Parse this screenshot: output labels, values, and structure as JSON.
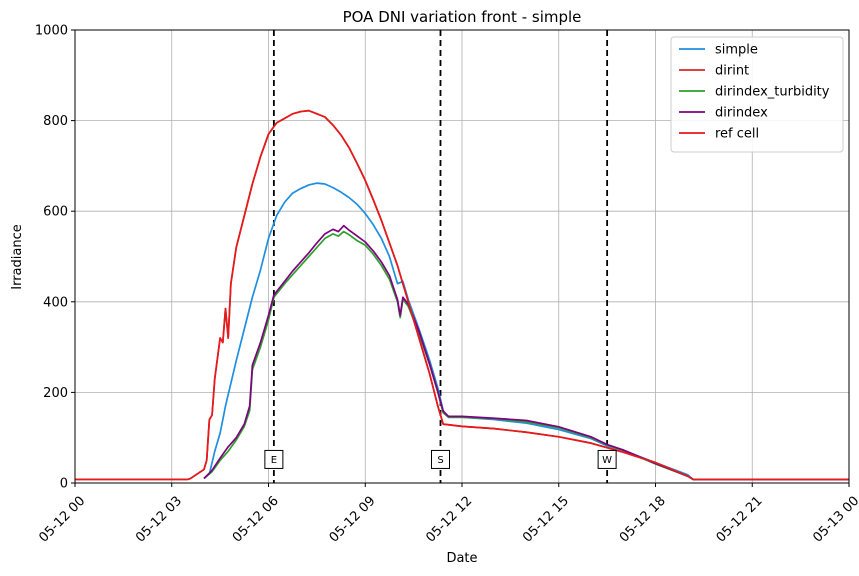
{
  "chart_data": {
    "type": "line",
    "title": "POA DNI variation front - simple",
    "xlabel": "Date",
    "ylabel": "Irradiance",
    "xlim": [
      "05-12 00",
      "05-13 00"
    ],
    "ylim": [
      0,
      1000
    ],
    "x_ticks": [
      "05-12 00",
      "05-12 03",
      "05-12 06",
      "05-12 09",
      "05-12 12",
      "05-12 15",
      "05-12 18",
      "05-12 21",
      "05-13 00"
    ],
    "y_ticks": [
      0,
      200,
      400,
      600,
      800,
      1000
    ],
    "grid": true,
    "legend_position": "top-right",
    "vertical_markers": [
      {
        "label": "E",
        "x": "05-12 06:10"
      },
      {
        "label": "S",
        "x": "05-12 11:20"
      },
      {
        "label": "W",
        "x": "05-12 16:30"
      }
    ],
    "series": [
      {
        "name": "simple",
        "color": "#1f8ee0",
        "points": [
          [
            "05-12 04:00",
            10
          ],
          [
            "05-12 04:10",
            20
          ],
          [
            "05-12 04:20",
            70
          ],
          [
            "05-12 04:30",
            110
          ],
          [
            "05-12 04:40",
            170
          ],
          [
            "05-12 04:50",
            220
          ],
          [
            "05-12 05:00",
            270
          ],
          [
            "05-12 05:15",
            340
          ],
          [
            "05-12 05:30",
            410
          ],
          [
            "05-12 05:45",
            470
          ],
          [
            "05-12 06:00",
            540
          ],
          [
            "05-12 06:15",
            590
          ],
          [
            "05-12 06:30",
            620
          ],
          [
            "05-12 06:45",
            640
          ],
          [
            "05-12 07:00",
            650
          ],
          [
            "05-12 07:15",
            658
          ],
          [
            "05-12 07:30",
            662
          ],
          [
            "05-12 07:45",
            660
          ],
          [
            "05-12 08:00",
            652
          ],
          [
            "05-12 08:15",
            642
          ],
          [
            "05-12 08:30",
            630
          ],
          [
            "05-12 08:45",
            615
          ],
          [
            "05-12 09:00",
            595
          ],
          [
            "05-12 09:15",
            570
          ],
          [
            "05-12 09:30",
            540
          ],
          [
            "05-12 09:45",
            500
          ],
          [
            "05-12 10:00",
            440
          ],
          [
            "05-12 10:10",
            445
          ],
          [
            "05-12 10:20",
            405
          ],
          [
            "05-12 10:40",
            340
          ],
          [
            "05-12 11:00",
            270
          ],
          [
            "05-12 11:15",
            210
          ],
          [
            "05-12 11:25",
            160
          ],
          [
            "05-12 11:35",
            145
          ],
          [
            "05-12 12:00",
            145
          ],
          [
            "05-12 13:00",
            140
          ],
          [
            "05-12 14:00",
            132
          ],
          [
            "05-12 15:00",
            118
          ],
          [
            "05-12 16:00",
            98
          ],
          [
            "05-12 16:30",
            82
          ],
          [
            "05-12 17:00",
            72
          ],
          [
            "05-12 18:00",
            45
          ],
          [
            "05-12 19:00",
            18
          ],
          [
            "05-12 19:10",
            8
          ],
          [
            "05-12 21:00",
            8
          ],
          [
            "05-13 00:00",
            8
          ]
        ]
      },
      {
        "name": "dirint",
        "color": "#d62728",
        "points": [
          [
            "05-12 00:00",
            8
          ],
          [
            "05-12 03:30",
            8
          ],
          [
            "05-12 03:35",
            10
          ],
          [
            "05-12 04:00",
            30
          ],
          [
            "05-12 04:05",
            50
          ],
          [
            "05-12 04:10",
            140
          ],
          [
            "05-12 04:15",
            150
          ],
          [
            "05-12 04:20",
            230
          ],
          [
            "05-12 04:30",
            320
          ],
          [
            "05-12 04:35",
            310
          ],
          [
            "05-12 04:40",
            385
          ],
          [
            "05-12 04:45",
            320
          ],
          [
            "05-12 04:50",
            440
          ],
          [
            "05-12 05:00",
            520
          ],
          [
            "05-12 05:15",
            590
          ],
          [
            "05-12 05:30",
            660
          ],
          [
            "05-12 05:45",
            720
          ],
          [
            "05-12 06:00",
            770
          ],
          [
            "05-12 06:15",
            795
          ],
          [
            "05-12 06:30",
            805
          ],
          [
            "05-12 06:45",
            815
          ],
          [
            "05-12 07:00",
            820
          ],
          [
            "05-12 07:15",
            822
          ],
          [
            "05-12 07:30",
            815
          ],
          [
            "05-12 07:45",
            808
          ],
          [
            "05-12 08:00",
            790
          ],
          [
            "05-12 08:15",
            768
          ],
          [
            "05-12 08:30",
            740
          ],
          [
            "05-12 08:45",
            705
          ],
          [
            "05-12 09:00",
            668
          ],
          [
            "05-12 09:15",
            625
          ],
          [
            "05-12 09:30",
            580
          ],
          [
            "05-12 09:45",
            530
          ],
          [
            "05-12 10:00",
            480
          ],
          [
            "05-12 10:15",
            420
          ],
          [
            "05-12 10:30",
            360
          ],
          [
            "05-12 10:45",
            300
          ],
          [
            "05-12 11:00",
            240
          ],
          [
            "05-12 11:15",
            170
          ],
          [
            "05-12 11:25",
            130
          ],
          [
            "05-12 12:00",
            125
          ],
          [
            "05-12 13:00",
            120
          ],
          [
            "05-12 14:00",
            112
          ],
          [
            "05-12 15:00",
            102
          ],
          [
            "05-12 16:00",
            88
          ],
          [
            "05-12 16:30",
            78
          ],
          [
            "05-12 17:00",
            68
          ],
          [
            "05-12 18:00",
            45
          ],
          [
            "05-12 19:00",
            15
          ],
          [
            "05-12 19:10",
            8
          ],
          [
            "05-12 21:00",
            8
          ],
          [
            "05-13 00:00",
            8
          ]
        ]
      },
      {
        "name": "dirindex_turbidity",
        "color": "#2ca02c",
        "points": [
          [
            "05-12 04:00",
            10
          ],
          [
            "05-12 04:15",
            25
          ],
          [
            "05-12 04:30",
            50
          ],
          [
            "05-12 04:45",
            70
          ],
          [
            "05-12 05:00",
            95
          ],
          [
            "05-12 05:15",
            125
          ],
          [
            "05-12 05:25",
            160
          ],
          [
            "05-12 05:30",
            250
          ],
          [
            "05-12 05:45",
            300
          ],
          [
            "05-12 06:00",
            360
          ],
          [
            "05-12 06:10",
            410
          ],
          [
            "05-12 06:30",
            440
          ],
          [
            "05-12 06:45",
            460
          ],
          [
            "05-12 07:00",
            480
          ],
          [
            "05-12 07:15",
            500
          ],
          [
            "05-12 07:30",
            520
          ],
          [
            "05-12 07:45",
            540
          ],
          [
            "05-12 08:00",
            550
          ],
          [
            "05-12 08:10",
            545
          ],
          [
            "05-12 08:20",
            555
          ],
          [
            "05-12 08:30",
            548
          ],
          [
            "05-12 08:45",
            535
          ],
          [
            "05-12 09:00",
            525
          ],
          [
            "05-12 09:15",
            505
          ],
          [
            "05-12 09:30",
            480
          ],
          [
            "05-12 09:45",
            450
          ],
          [
            "05-12 10:00",
            400
          ],
          [
            "05-12 10:05",
            365
          ],
          [
            "05-12 10:10",
            405
          ],
          [
            "05-12 10:20",
            390
          ],
          [
            "05-12 10:40",
            330
          ],
          [
            "05-12 11:00",
            260
          ],
          [
            "05-12 11:15",
            200
          ],
          [
            "05-12 11:25",
            155
          ],
          [
            "05-12 11:35",
            145
          ],
          [
            "05-12 12:00",
            145
          ],
          [
            "05-12 13:00",
            142
          ],
          [
            "05-12 14:00",
            135
          ],
          [
            "05-12 15:00",
            122
          ],
          [
            "05-12 16:00",
            100
          ],
          [
            "05-12 16:30",
            84
          ],
          [
            "05-12 17:00",
            72
          ],
          [
            "05-12 18:00",
            42
          ],
          [
            "05-12 19:00",
            15
          ],
          [
            "05-12 19:10",
            8
          ],
          [
            "05-12 21:00",
            8
          ],
          [
            "05-13 00:00",
            8
          ]
        ]
      },
      {
        "name": "dirindex",
        "color": "#800080",
        "points": [
          [
            "05-12 04:00",
            10
          ],
          [
            "05-12 04:15",
            28
          ],
          [
            "05-12 04:30",
            55
          ],
          [
            "05-12 04:45",
            80
          ],
          [
            "05-12 05:00",
            100
          ],
          [
            "05-12 05:15",
            130
          ],
          [
            "05-12 05:25",
            170
          ],
          [
            "05-12 05:30",
            260
          ],
          [
            "05-12 05:45",
            310
          ],
          [
            "05-12 06:00",
            370
          ],
          [
            "05-12 06:10",
            415
          ],
          [
            "05-12 06:30",
            445
          ],
          [
            "05-12 06:45",
            468
          ],
          [
            "05-12 07:00",
            488
          ],
          [
            "05-12 07:15",
            508
          ],
          [
            "05-12 07:30",
            530
          ],
          [
            "05-12 07:45",
            550
          ],
          [
            "05-12 08:00",
            560
          ],
          [
            "05-12 08:10",
            555
          ],
          [
            "05-12 08:20",
            568
          ],
          [
            "05-12 08:30",
            558
          ],
          [
            "05-12 08:45",
            545
          ],
          [
            "05-12 09:00",
            532
          ],
          [
            "05-12 09:15",
            512
          ],
          [
            "05-12 09:30",
            488
          ],
          [
            "05-12 09:45",
            458
          ],
          [
            "05-12 10:00",
            405
          ],
          [
            "05-12 10:05",
            370
          ],
          [
            "05-12 10:10",
            410
          ],
          [
            "05-12 10:20",
            395
          ],
          [
            "05-12 10:40",
            335
          ],
          [
            "05-12 11:00",
            262
          ],
          [
            "05-12 11:15",
            202
          ],
          [
            "05-12 11:25",
            158
          ],
          [
            "05-12 11:35",
            147
          ],
          [
            "05-12 12:00",
            147
          ],
          [
            "05-12 13:00",
            143
          ],
          [
            "05-12 14:00",
            138
          ],
          [
            "05-12 15:00",
            124
          ],
          [
            "05-12 16:00",
            102
          ],
          [
            "05-12 16:30",
            85
          ],
          [
            "05-12 17:00",
            73
          ],
          [
            "05-12 18:00",
            43
          ],
          [
            "05-12 19:00",
            15
          ],
          [
            "05-12 19:10",
            8
          ],
          [
            "05-12 21:00",
            8
          ],
          [
            "05-13 00:00",
            8
          ]
        ]
      },
      {
        "name": "ref cell",
        "color": "#e41a1c",
        "points": [
          [
            "05-12 00:00",
            8
          ],
          [
            "05-12 03:30",
            8
          ],
          [
            "05-12 03:35",
            10
          ],
          [
            "05-12 04:00",
            30
          ],
          [
            "05-12 04:05",
            50
          ],
          [
            "05-12 04:10",
            140
          ],
          [
            "05-12 04:15",
            150
          ],
          [
            "05-12 04:20",
            230
          ],
          [
            "05-12 04:30",
            320
          ],
          [
            "05-12 04:35",
            310
          ],
          [
            "05-12 04:40",
            385
          ],
          [
            "05-12 04:45",
            320
          ],
          [
            "05-12 04:50",
            440
          ],
          [
            "05-12 05:00",
            520
          ],
          [
            "05-12 05:15",
            590
          ],
          [
            "05-12 05:30",
            660
          ],
          [
            "05-12 05:45",
            720
          ],
          [
            "05-12 06:00",
            770
          ],
          [
            "05-12 06:15",
            795
          ],
          [
            "05-12 06:30",
            805
          ],
          [
            "05-12 06:45",
            815
          ],
          [
            "05-12 07:00",
            820
          ],
          [
            "05-12 07:15",
            822
          ],
          [
            "05-12 07:30",
            815
          ],
          [
            "05-12 07:45",
            808
          ],
          [
            "05-12 08:00",
            790
          ],
          [
            "05-12 08:15",
            768
          ],
          [
            "05-12 08:30",
            740
          ],
          [
            "05-12 08:45",
            705
          ],
          [
            "05-12 09:00",
            668
          ],
          [
            "05-12 09:15",
            625
          ],
          [
            "05-12 09:30",
            580
          ],
          [
            "05-12 09:45",
            530
          ],
          [
            "05-12 10:00",
            480
          ],
          [
            "05-12 10:15",
            420
          ],
          [
            "05-12 10:30",
            360
          ],
          [
            "05-12 10:45",
            300
          ],
          [
            "05-12 11:00",
            240
          ],
          [
            "05-12 11:15",
            170
          ],
          [
            "05-12 11:25",
            130
          ],
          [
            "05-12 12:00",
            125
          ],
          [
            "05-12 13:00",
            120
          ],
          [
            "05-12 14:00",
            112
          ],
          [
            "05-12 15:00",
            102
          ],
          [
            "05-12 16:00",
            88
          ],
          [
            "05-12 16:30",
            78
          ],
          [
            "05-12 17:00",
            68
          ],
          [
            "05-12 18:00",
            45
          ],
          [
            "05-12 19:00",
            15
          ],
          [
            "05-12 19:10",
            8
          ],
          [
            "05-12 21:00",
            8
          ],
          [
            "05-13 00:00",
            8
          ]
        ]
      }
    ]
  }
}
